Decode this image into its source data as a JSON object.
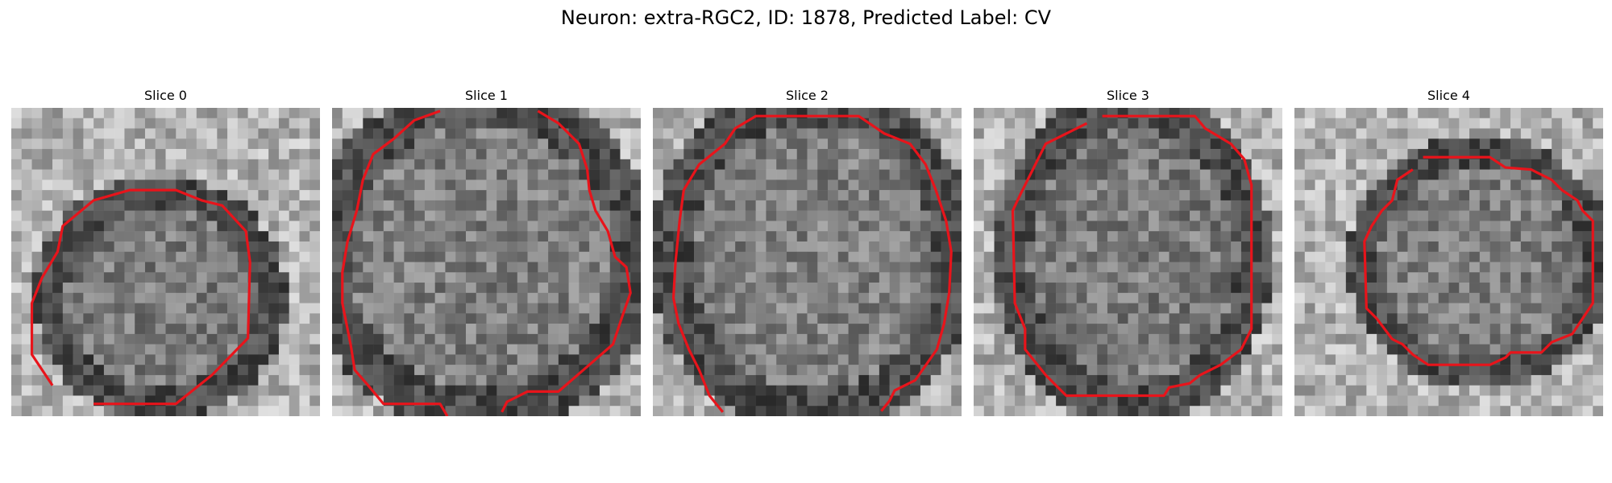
{
  "figure": {
    "title": "Neuron: extra-RGC2, ID: 1878, Predicted Label: CV"
  },
  "colors": {
    "contour": "#e8141b",
    "background": "#ffffff"
  },
  "panels": [
    {
      "title": "Slice 0"
    },
    {
      "title": "Slice 1"
    },
    {
      "title": "Slice 2"
    },
    {
      "title": "Slice 3"
    },
    {
      "title": "Slice 4"
    }
  ]
}
